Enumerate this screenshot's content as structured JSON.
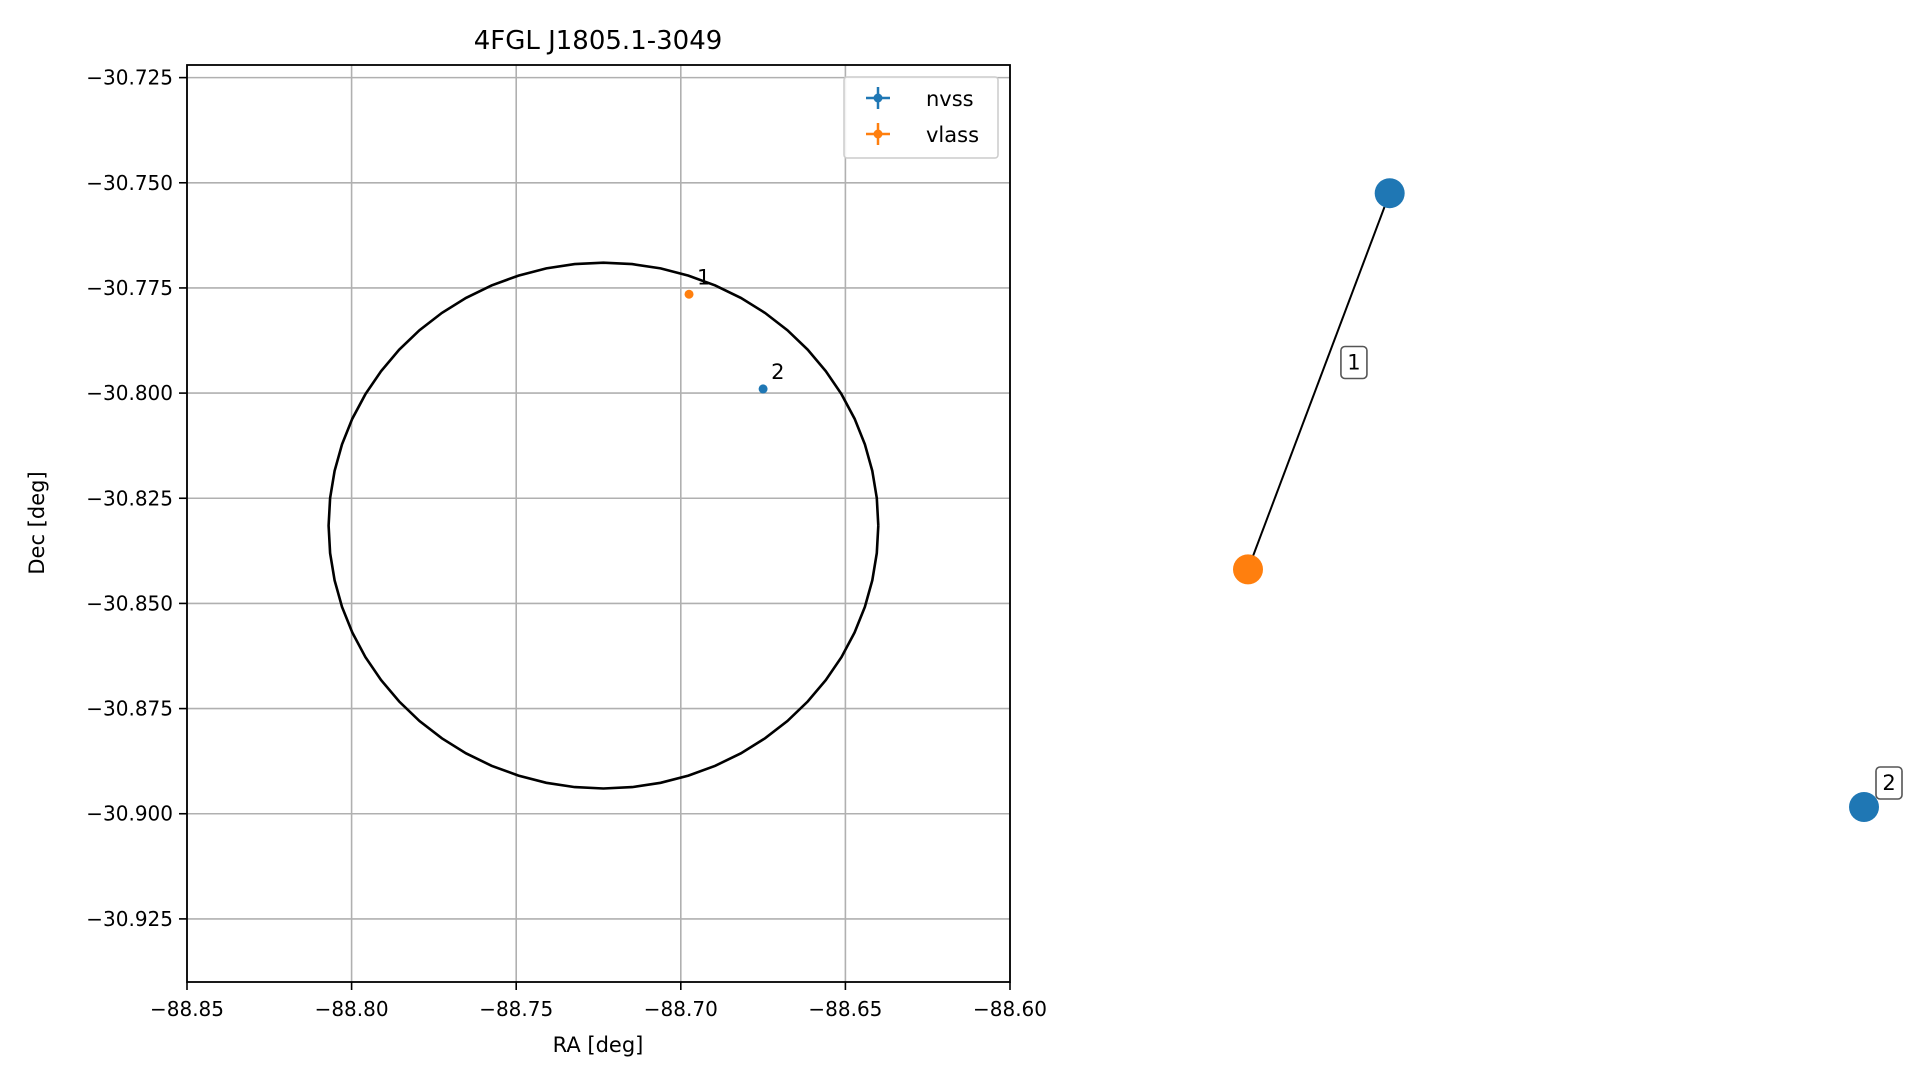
{
  "chart_data": [
    {
      "type": "scatter",
      "title": "4FGL J1805.1-3049",
      "xlabel": "RA [deg]",
      "ylabel": "Dec [deg]",
      "xlim": [
        -88.85,
        -88.6
      ],
      "ylim": [
        -30.94,
        -30.722
      ],
      "xticks": [
        -88.85,
        -88.8,
        -88.75,
        -88.7,
        -88.65,
        -88.6
      ],
      "xtick_labels": [
        "−88.85",
        "−88.80",
        "−88.75",
        "−88.70",
        "−88.65",
        "−88.60"
      ],
      "yticks": [
        -30.725,
        -30.75,
        -30.775,
        -30.8,
        -30.825,
        -30.85,
        -30.875,
        -30.9,
        -30.925
      ],
      "ytick_labels": [
        "−30.725",
        "−30.750",
        "−30.775",
        "−30.800",
        "−30.825",
        "−30.850",
        "−30.875",
        "−30.900",
        "−30.925"
      ],
      "grid": true,
      "legend_position": "top-right",
      "ellipse": {
        "ra": -88.7235,
        "dec": -30.8315,
        "ra_radius": 0.0835,
        "dec_radius": 0.0625,
        "color": "#000000"
      },
      "series": [
        {
          "name": "nvss",
          "color": "#1f77b4",
          "points": [
            {
              "x": -88.675,
              "y": -30.799,
              "label": "2"
            }
          ]
        },
        {
          "name": "vlass",
          "color": "#ff7f0e",
          "points": [
            {
              "x": -88.6975,
              "y": -30.7765,
              "label": "1"
            }
          ]
        }
      ]
    },
    {
      "type": "network",
      "nodes": [
        {
          "id": "nvss_a",
          "color": "#1f77b4",
          "x": 0.23,
          "y": 0.93
        },
        {
          "id": "vlass_a",
          "color": "#ff7f0e",
          "x": 0.0,
          "y": 0.36
        },
        {
          "id": "nvss_b",
          "color": "#1f77b4",
          "x": 1.0,
          "y": 0.0
        }
      ],
      "edges": [
        {
          "source": "nvss_a",
          "target": "vlass_a"
        }
      ],
      "labels": [
        {
          "text": "1",
          "at": "edge",
          "edge": 0
        },
        {
          "text": "2",
          "at": "node",
          "node": "nvss_b"
        }
      ]
    }
  ]
}
